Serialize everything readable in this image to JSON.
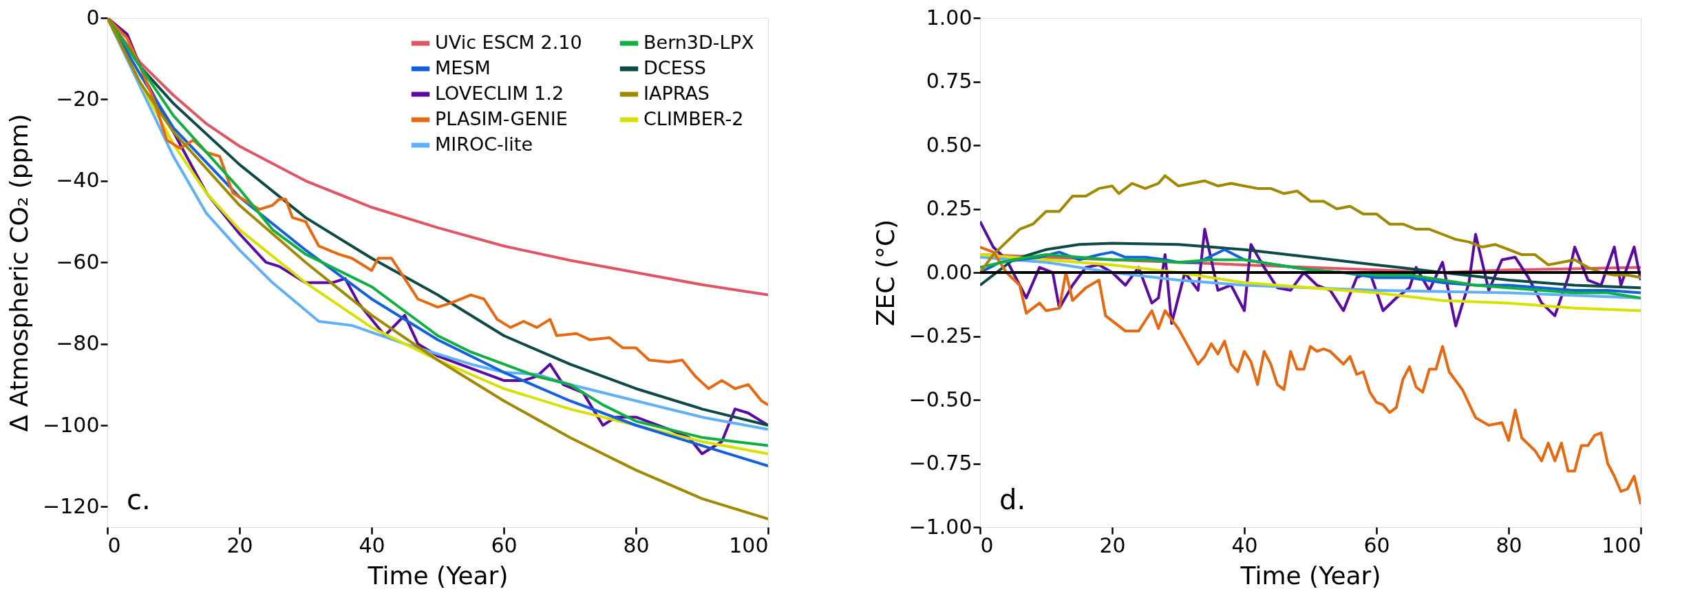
{
  "chart_data": [
    {
      "type": "line",
      "xlabel": "Time (Year)",
      "ylabel": "Δ Atmospheric CO₂ (ppm)",
      "xlim": [
        0,
        100
      ],
      "ylim": [
        -125,
        0
      ],
      "xticks": [
        0,
        20,
        40,
        60,
        80,
        100
      ],
      "yticks": [
        0,
        {
          "value": -20,
          "label": "−20"
        },
        {
          "value": -40,
          "label": "−40"
        },
        {
          "value": -60,
          "label": "−60"
        },
        {
          "value": -80,
          "label": "−80"
        },
        {
          "value": -100,
          "label": "−100"
        },
        {
          "value": -120,
          "label": "−120"
        }
      ],
      "legend": "top right",
      "annotations": [
        "c."
      ],
      "series": [
        {
          "name": "UVic ESCM 2.10",
          "color": "#e05563",
          "x": [
            0,
            5,
            10,
            15,
            20,
            30,
            40,
            50,
            60,
            70,
            80,
            90,
            100
          ],
          "values": [
            0,
            -11,
            -19,
            -26,
            -31.5,
            -40,
            -46.5,
            -51.5,
            -56,
            -59.5,
            -62.5,
            -65.5,
            -68
          ]
        },
        {
          "name": "LOVECLIM 1.2",
          "color": "#5a0aa0",
          "x": [
            0,
            3,
            6,
            10,
            15,
            20,
            24,
            26,
            30,
            34,
            36,
            38,
            42,
            45,
            47,
            50,
            55,
            60,
            63,
            65,
            67,
            69,
            72,
            75,
            77,
            80,
            85,
            88,
            90,
            93,
            95,
            97,
            100
          ],
          "values": [
            0,
            -4,
            -16,
            -28,
            -43,
            -53,
            -60,
            -61,
            -65,
            -65,
            -64,
            -70,
            -78,
            -73,
            -80,
            -83,
            -86,
            -89,
            -89,
            -88,
            -85,
            -90,
            -92,
            -100,
            -98,
            -98,
            -101,
            -103,
            -107,
            -104,
            -96,
            -97,
            -100
          ]
        },
        {
          "name": "MIROC-lite",
          "color": "#60b0f8",
          "x": [
            0,
            5,
            10,
            15,
            20,
            25,
            32,
            37,
            45,
            55,
            60,
            65,
            70,
            80,
            90,
            100
          ],
          "values": [
            0,
            -17,
            -34,
            -48,
            -57,
            -65,
            -74.5,
            -75.5,
            -80,
            -85,
            -87,
            -87.5,
            -90,
            -94,
            -98,
            -101
          ]
        },
        {
          "name": "DCESS",
          "color": "#0d4a45",
          "x": [
            0,
            5,
            10,
            20,
            30,
            40,
            50,
            60,
            70,
            80,
            90,
            100
          ],
          "values": [
            0,
            -12,
            -21,
            -36,
            -49,
            -59,
            -68,
            -78,
            -85,
            -91,
            -96,
            -100
          ]
        },
        {
          "name": "CLIMBER-2",
          "color": "#d8e000",
          "x": [
            0,
            5,
            10,
            15,
            20,
            30,
            40,
            50,
            60,
            70,
            80,
            90,
            100
          ],
          "values": [
            0,
            -16,
            -31,
            -43,
            -52,
            -65,
            -76,
            -84,
            -91,
            -96,
            -100,
            -104,
            -107
          ]
        },
        {
          "name": "MESM",
          "color": "#1060e0",
          "x": [
            0,
            5,
            10,
            20,
            30,
            40,
            50,
            60,
            70,
            80,
            90,
            100
          ],
          "values": [
            0,
            -14,
            -27,
            -44,
            -57,
            -69,
            -79,
            -87,
            -94,
            -100,
            -105,
            -110
          ]
        },
        {
          "name": "PLASIM-GENIE",
          "color": "#e86810",
          "x": [
            0,
            3,
            5,
            7,
            9,
            11,
            13,
            15,
            17,
            19,
            21,
            23,
            25,
            26,
            27,
            28,
            30,
            32,
            35,
            37,
            40,
            41,
            43,
            45,
            47,
            50,
            52,
            55,
            57,
            59,
            61,
            63,
            65,
            67,
            68,
            71,
            73,
            76,
            78,
            80,
            82,
            85,
            87,
            89,
            91,
            93,
            95,
            97,
            99,
            100
          ],
          "values": [
            0,
            -5,
            -12,
            -20,
            -30,
            -32,
            -30,
            -33,
            -34,
            -43,
            -45,
            -47,
            -46,
            -44.5,
            -44.5,
            -49,
            -50,
            -56,
            -58,
            -59,
            -62,
            -59,
            -59,
            -64,
            -69,
            -71,
            -70,
            -68,
            -69,
            -74,
            -76,
            -74.5,
            -76,
            -74,
            -78,
            -77.5,
            -79,
            -78.5,
            -81,
            -81,
            -84,
            -84.5,
            -84,
            -88,
            -91,
            -89,
            -91,
            -90,
            -94,
            -95
          ]
        },
        {
          "name": "Bern3D-LPX",
          "color": "#10b040",
          "x": [
            0,
            5,
            10,
            20,
            25,
            30,
            35,
            40,
            45,
            50,
            55,
            60,
            65,
            70,
            75,
            80,
            85,
            90,
            95,
            100
          ],
          "values": [
            0,
            -12,
            -24,
            -42,
            -52,
            -58,
            -62,
            -66,
            -72,
            -78,
            -82,
            -85,
            -88,
            -90,
            -95,
            -99,
            -101,
            -103,
            -104,
            -105
          ]
        },
        {
          "name": "IAPRAS",
          "color": "#a08800",
          "x": [
            0,
            5,
            10,
            20,
            30,
            40,
            50,
            60,
            70,
            80,
            90,
            100
          ],
          "values": [
            0,
            -16,
            -28,
            -46,
            -60,
            -73,
            -84,
            -94,
            -103,
            -111,
            -118,
            -123
          ]
        }
      ]
    },
    {
      "type": "line",
      "xlabel": "Time (Year)",
      "ylabel": "ZEC (°C)",
      "xlim": [
        0,
        100
      ],
      "ylim": [
        -1,
        1
      ],
      "xticks": [
        0,
        20,
        40,
        60,
        80,
        100
      ],
      "yticks": [
        {
          "value": 1,
          "label": "1.00"
        },
        {
          "value": 0.75,
          "label": "0.75"
        },
        {
          "value": 0.5,
          "label": "0.50"
        },
        {
          "value": 0.25,
          "label": "0.25"
        },
        {
          "value": 0,
          "label": "0.00"
        },
        {
          "value": -0.25,
          "label": "−0.25"
        },
        {
          "value": -0.5,
          "label": "−0.50"
        },
        {
          "value": -0.75,
          "label": "−0.75"
        },
        {
          "value": -1,
          "label": "−1.00"
        }
      ],
      "annotations": [
        "d."
      ],
      "ref_lines": [
        {
          "axis": "y",
          "value": 0,
          "color": "#000000"
        }
      ],
      "series": [
        {
          "color": "#e05563",
          "x": [
            0,
            20,
            40,
            60,
            70,
            80,
            100
          ],
          "values": [
            0.07,
            0.05,
            0.03,
            0.01,
            0.0,
            0.01,
            0.02
          ]
        },
        {
          "color": "#5a0aa0",
          "x": [
            0,
            2,
            4,
            6,
            7,
            9,
            11,
            12,
            14,
            16,
            18,
            20,
            22,
            24,
            26,
            27,
            28,
            29,
            31,
            33,
            34,
            36,
            38,
            40,
            41,
            43,
            45,
            47,
            49,
            51,
            53,
            55,
            57,
            59,
            61,
            63,
            65,
            66,
            68,
            70,
            72,
            74,
            75,
            77,
            79,
            81,
            83,
            85,
            87,
            89,
            90,
            92,
            94,
            96,
            97,
            99,
            100
          ],
          "values": [
            0.2,
            0.1,
            0.05,
            -0.05,
            -0.1,
            0.02,
            0.0,
            -0.14,
            -0.05,
            0.02,
            0.03,
            0.0,
            -0.05,
            0.02,
            -0.12,
            -0.1,
            0.07,
            -0.2,
            0.0,
            -0.07,
            0.17,
            -0.07,
            -0.05,
            -0.15,
            0.11,
            0.02,
            -0.06,
            -0.07,
            0.0,
            -0.05,
            -0.07,
            -0.15,
            -0.02,
            0.0,
            -0.15,
            -0.1,
            -0.06,
            0.02,
            -0.07,
            0.04,
            -0.21,
            -0.04,
            0.15,
            -0.07,
            0.05,
            0.06,
            -0.02,
            -0.12,
            -0.17,
            -0.02,
            0.1,
            -0.03,
            -0.05,
            0.1,
            -0.05,
            0.1,
            -0.03
          ]
        },
        {
          "color": "#60b0f8",
          "x": [
            0,
            10,
            20,
            30,
            40,
            60,
            80,
            100
          ],
          "values": [
            0.06,
            0.04,
            0.0,
            -0.03,
            -0.05,
            -0.07,
            -0.08,
            -0.1
          ]
        },
        {
          "color": "#0d4a45",
          "x": [
            0,
            5,
            10,
            15,
            20,
            30,
            40,
            50,
            60,
            70,
            80,
            90,
            100
          ],
          "values": [
            -0.05,
            0.05,
            0.09,
            0.11,
            0.115,
            0.11,
            0.09,
            0.06,
            0.03,
            0.0,
            -0.03,
            -0.05,
            -0.06
          ]
        },
        {
          "color": "#d8e000",
          "x": [
            0,
            10,
            20,
            30,
            40,
            60,
            70,
            80,
            90,
            100
          ],
          "values": [
            0.07,
            0.05,
            0.03,
            0.0,
            -0.04,
            -0.08,
            -0.11,
            -0.12,
            -0.14,
            -0.15
          ]
        },
        {
          "color": "#1060e0",
          "x": [
            0,
            3,
            6,
            9,
            12,
            15,
            18,
            20,
            22,
            25,
            28,
            30,
            33,
            37,
            40,
            45,
            50,
            55,
            60,
            65,
            70,
            75,
            80,
            85,
            90,
            95,
            100
          ],
          "values": [
            0.0,
            0.04,
            0.05,
            0.06,
            0.08,
            0.05,
            0.07,
            0.08,
            0.06,
            0.06,
            0.05,
            0.04,
            0.04,
            0.09,
            0.05,
            0.03,
            0.01,
            0.0,
            -0.02,
            -0.02,
            -0.04,
            -0.05,
            -0.05,
            -0.06,
            -0.07,
            -0.07,
            -0.08
          ]
        },
        {
          "color": "#e86810",
          "x": [
            0,
            2,
            4,
            6,
            7,
            9,
            10,
            12,
            13,
            14,
            16,
            18,
            19,
            22,
            24,
            26,
            27,
            28,
            30,
            33,
            34,
            35,
            36,
            37,
            38,
            39,
            40,
            41,
            42,
            43,
            44,
            45,
            46,
            47,
            48,
            49,
            50,
            51,
            52,
            53,
            55,
            56,
            57,
            58,
            59,
            60,
            61,
            62,
            63,
            64,
            65,
            66,
            67,
            68,
            69,
            70,
            71,
            73,
            75,
            77,
            79,
            80,
            81,
            82,
            84,
            85,
            86,
            87,
            88,
            89,
            90,
            91,
            92,
            93,
            94,
            95,
            96,
            97,
            98,
            99,
            100
          ],
          "values": [
            0.1,
            0.08,
            0.0,
            -0.05,
            -0.16,
            -0.12,
            -0.15,
            -0.14,
            0.0,
            -0.11,
            -0.06,
            -0.03,
            -0.17,
            -0.23,
            -0.23,
            -0.15,
            -0.22,
            -0.15,
            -0.22,
            -0.36,
            -0.33,
            -0.28,
            -0.32,
            -0.27,
            -0.36,
            -0.39,
            -0.31,
            -0.35,
            -0.44,
            -0.31,
            -0.36,
            -0.44,
            -0.46,
            -0.31,
            -0.38,
            -0.38,
            -0.29,
            -0.31,
            -0.3,
            -0.31,
            -0.36,
            -0.33,
            -0.4,
            -0.39,
            -0.47,
            -0.51,
            -0.52,
            -0.55,
            -0.53,
            -0.42,
            -0.37,
            -0.45,
            -0.47,
            -0.38,
            -0.38,
            -0.29,
            -0.39,
            -0.46,
            -0.57,
            -0.6,
            -0.59,
            -0.66,
            -0.54,
            -0.65,
            -0.7,
            -0.74,
            -0.67,
            -0.74,
            -0.67,
            -0.78,
            -0.78,
            -0.68,
            -0.68,
            -0.64,
            -0.63,
            -0.75,
            -0.8,
            -0.86,
            -0.85,
            -0.8,
            -0.91
          ]
        },
        {
          "color": "#10b040",
          "x": [
            0,
            5,
            10,
            15,
            20,
            25,
            30,
            35,
            40,
            45,
            50,
            55,
            60,
            65,
            70,
            75,
            80,
            85,
            90,
            95,
            100
          ],
          "values": [
            0.02,
            0.05,
            0.07,
            0.06,
            0.05,
            0.05,
            0.04,
            0.05,
            0.05,
            0.03,
            0.01,
            0.0,
            -0.01,
            -0.01,
            -0.03,
            -0.05,
            -0.06,
            -0.07,
            -0.08,
            -0.08,
            -0.1
          ]
        },
        {
          "color": "#a08800",
          "x": [
            0,
            2,
            4,
            6,
            8,
            10,
            12,
            14,
            16,
            18,
            20,
            21,
            23,
            25,
            27,
            28,
            30,
            32,
            34,
            36,
            38,
            40,
            42,
            44,
            46,
            48,
            50,
            52,
            54,
            56,
            58,
            60,
            62,
            64,
            66,
            68,
            70,
            72,
            74,
            76,
            78,
            80,
            82,
            84,
            86,
            88,
            90,
            92,
            94,
            96,
            98,
            100
          ],
          "values": [
            0.0,
            0.07,
            0.12,
            0.17,
            0.19,
            0.24,
            0.24,
            0.3,
            0.3,
            0.33,
            0.34,
            0.31,
            0.35,
            0.33,
            0.35,
            0.38,
            0.34,
            0.35,
            0.36,
            0.34,
            0.35,
            0.34,
            0.33,
            0.33,
            0.31,
            0.32,
            0.28,
            0.28,
            0.25,
            0.26,
            0.23,
            0.23,
            0.19,
            0.19,
            0.17,
            0.17,
            0.15,
            0.13,
            0.12,
            0.1,
            0.11,
            0.09,
            0.07,
            0.07,
            0.03,
            0.04,
            0.05,
            0.02,
            0.0,
            -0.01,
            -0.01,
            -0.02
          ]
        }
      ]
    }
  ]
}
